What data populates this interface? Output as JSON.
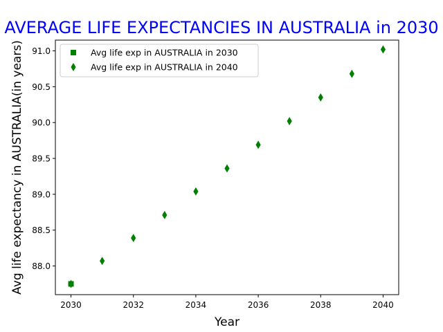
{
  "chart_data": {
    "type": "scatter",
    "title": "AVERAGE LIFE EXPECTANCIES IN AUSTRALIA in 2030",
    "xlabel": "Year",
    "ylabel": "Avg life expectancy in AUSTRALIA(in years)",
    "xlim": [
      2029.5,
      2040.5
    ],
    "ylim": [
      87.6,
      91.15
    ],
    "xticks": [
      "2030",
      "2032",
      "2034",
      "2036",
      "2038",
      "2040"
    ],
    "yticks": [
      "88.0",
      "88.5",
      "89.0",
      "89.5",
      "90.0",
      "90.5",
      "91.0"
    ],
    "grid": false,
    "legend_position": "upper-left",
    "series": [
      {
        "name": "Avg life exp in AUSTRALIA in 2030",
        "marker": "square",
        "color": "#008000",
        "x": [
          2030
        ],
        "y": [
          87.75
        ]
      },
      {
        "name": "Avg life exp in AUSTRALIA in 2040",
        "marker": "thin-diamond",
        "color": "#008000",
        "x": [
          2030,
          2031,
          2032,
          2033,
          2034,
          2035,
          2036,
          2037,
          2038,
          2039,
          2040
        ],
        "y": [
          87.75,
          88.07,
          88.39,
          88.71,
          89.04,
          89.36,
          89.69,
          90.02,
          90.35,
          90.68,
          91.02
        ]
      }
    ]
  }
}
